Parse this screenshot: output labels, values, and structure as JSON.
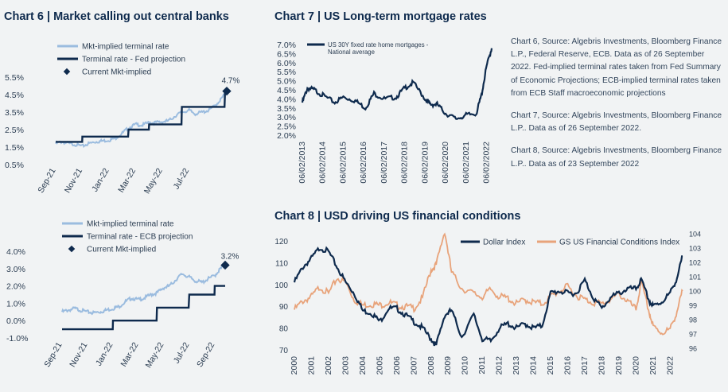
{
  "titles": {
    "chart6": "Chart 6 | Market calling out central banks",
    "chart7": "Chart 7 | US Long-term mortgage rates",
    "chart8": "Chart 8 | USD driving US financial conditions"
  },
  "sources": [
    "Chart 6, Source: Algebris Investments, Bloomberg Finance L.P., Federal Reserve, ECB. Data as of 26 September 2022. Fed-implied terminal rates taken from Fed Summary of Economic Projections; ECB-implied terminal rates taken from ECB Staff macroeconomic projections",
    "Chart 7, Source: Algebris Investments, Bloomberg Finance L.P.. Data as of 26 September 2022.",
    "Chart 8, Source: Algebris Investments, Bloomberg Finance L.P.. Data as of 23 September 2022"
  ],
  "colors": {
    "navy": "#0e2a4d",
    "light_blue": "#9bbcdf",
    "orange": "#e8a37a",
    "background": "#f1f3f4"
  },
  "chart_data": [
    {
      "id": "chart6",
      "type": "line",
      "x_ticks": [
        "Sep-21",
        "Nov-21",
        "Jan-22",
        "Mar-22",
        "May-22",
        "Jul-22"
      ],
      "y_ticks": [
        "5.5%",
        "4.5%",
        "3.5%",
        "2.5%",
        "1.5%",
        "0.5%"
      ],
      "ylim": [
        0.5,
        5.5
      ],
      "series": [
        {
          "name": "Mkt-implied terminal rate",
          "style": "line-light",
          "x": [
            "2021-09-01",
            "2021-09-15",
            "2021-10-01",
            "2021-10-15",
            "2021-11-01",
            "2021-11-15",
            "2021-12-01",
            "2021-12-15",
            "2022-01-01",
            "2022-01-15",
            "2022-02-01",
            "2022-02-15",
            "2022-03-01",
            "2022-03-15",
            "2022-04-01",
            "2022-04-15",
            "2022-05-01",
            "2022-05-15",
            "2022-06-01",
            "2022-06-15",
            "2022-07-01",
            "2022-07-15",
            "2022-08-01",
            "2022-08-15",
            "2022-09-01",
            "2022-09-15",
            "2022-09-26"
          ],
          "values": [
            1.7,
            1.8,
            1.7,
            1.65,
            1.55,
            1.7,
            1.8,
            1.85,
            1.9,
            2.0,
            2.3,
            2.6,
            2.8,
            2.75,
            2.9,
            2.9,
            2.95,
            3.0,
            3.3,
            3.5,
            3.6,
            3.4,
            3.5,
            3.6,
            3.9,
            4.3,
            4.7
          ]
        },
        {
          "name": "Terminal rate - Fed projection",
          "style": "step-navy",
          "x": [
            "2021-09-01",
            "2021-10-31",
            "2021-11-01",
            "2022-02-14",
            "2022-02-15",
            "2022-03-31",
            "2022-04-01",
            "2022-06-14",
            "2022-06-15",
            "2022-09-21",
            "2022-09-22",
            "2022-09-26"
          ],
          "values": [
            1.8,
            1.8,
            2.1,
            2.1,
            2.5,
            2.5,
            2.8,
            2.8,
            3.8,
            3.8,
            4.6,
            4.6
          ]
        }
      ],
      "current": {
        "name": "Current Mkt-implied",
        "value": 4.7,
        "label": "4.7%"
      }
    },
    {
      "id": "chart6b",
      "type": "line",
      "x_ticks": [
        "Sep-21",
        "Nov-21",
        "Jan-22",
        "Mar-22",
        "May-22",
        "Jul-22",
        "Sep-22"
      ],
      "y_ticks": [
        "4.0%",
        "3.0%",
        "2.0%",
        "1.0%",
        "0.0%",
        "-1.0%"
      ],
      "ylim": [
        -1.0,
        4.0
      ],
      "series": [
        {
          "name": "Mkt-implied terminal rate",
          "style": "line-light",
          "x": [
            "2021-09-01",
            "2021-09-15",
            "2021-10-01",
            "2021-10-15",
            "2021-11-01",
            "2021-11-15",
            "2021-12-01",
            "2021-12-15",
            "2022-01-01",
            "2022-01-15",
            "2022-02-01",
            "2022-02-15",
            "2022-03-01",
            "2022-03-15",
            "2022-04-01",
            "2022-04-15",
            "2022-05-01",
            "2022-05-15",
            "2022-06-01",
            "2022-06-15",
            "2022-07-01",
            "2022-07-15",
            "2022-08-01",
            "2022-08-15",
            "2022-09-01",
            "2022-09-15",
            "2022-09-26"
          ],
          "values": [
            0.5,
            0.6,
            0.7,
            0.6,
            0.5,
            0.45,
            0.5,
            0.6,
            0.7,
            0.8,
            1.1,
            1.3,
            1.2,
            1.3,
            1.5,
            1.6,
            1.9,
            2.0,
            2.4,
            2.7,
            2.5,
            2.3,
            2.2,
            2.4,
            2.6,
            3.0,
            3.2
          ]
        },
        {
          "name": "Terminal rate - ECB projection",
          "style": "step-navy",
          "x": [
            "2021-09-01",
            "2021-12-31",
            "2022-01-01",
            "2022-04-14",
            "2022-04-15",
            "2022-06-30",
            "2022-07-01",
            "2022-08-31",
            "2022-09-01",
            "2022-09-10",
            "2022-09-11",
            "2022-09-26"
          ],
          "values": [
            -0.5,
            -0.5,
            0.0,
            0.0,
            0.75,
            0.75,
            1.5,
            1.5,
            2.0,
            2.0,
            2.0,
            2.0
          ]
        }
      ],
      "current": {
        "name": "Current Mkt-implied",
        "value": 3.2,
        "label": "3.2%"
      }
    },
    {
      "id": "chart7",
      "type": "line",
      "x_ticks": [
        "06/02/2013",
        "06/02/2014",
        "06/02/2015",
        "06/02/2016",
        "06/02/2017",
        "06/02/2018",
        "06/02/2019",
        "06/02/2020",
        "06/02/2021",
        "06/02/2022"
      ],
      "y_ticks": [
        "7.0%",
        "6.5%",
        "6.0%",
        "5.5%",
        "5.0%",
        "4.5%",
        "4.0%",
        "3.5%",
        "3.0%",
        "2.5%",
        "2.0%"
      ],
      "ylim": [
        2.0,
        7.0
      ],
      "series": [
        {
          "name": "US 30Y fixed rate home mortgages - National average",
          "style": "line-navy",
          "x": [
            "2013-06",
            "2013-09",
            "2014-01",
            "2014-06",
            "2015-01",
            "2015-06",
            "2016-01",
            "2016-07",
            "2016-12",
            "2017-06",
            "2018-01",
            "2018-06",
            "2018-11",
            "2019-06",
            "2019-09",
            "2020-01",
            "2020-06",
            "2020-12",
            "2021-06",
            "2021-12",
            "2022-03",
            "2022-06",
            "2022-09"
          ],
          "values": [
            3.8,
            4.6,
            4.5,
            4.2,
            3.8,
            4.1,
            3.9,
            3.5,
            4.3,
            4.0,
            4.1,
            4.6,
            4.9,
            4.0,
            3.7,
            3.7,
            3.2,
            2.9,
            3.1,
            3.2,
            4.2,
            5.8,
            6.8
          ]
        }
      ]
    },
    {
      "id": "chart8",
      "type": "line",
      "x_ticks": [
        "2000",
        "2001",
        "2002",
        "2003",
        "2004",
        "2005",
        "2006",
        "2007",
        "2008",
        "2009",
        "2010",
        "2011",
        "2012",
        "2013",
        "2014",
        "2015",
        "2016",
        "2017",
        "2018",
        "2019",
        "2020",
        "2021",
        "2022"
      ],
      "y_ticks_left": [
        "120",
        "110",
        "100",
        "90",
        "80",
        "70"
      ],
      "y_ticks_right": [
        "104",
        "103",
        "102",
        "101",
        "100",
        "99",
        "98",
        "97",
        "96"
      ],
      "ylim_left": [
        70,
        120
      ],
      "ylim_right": [
        96,
        104
      ],
      "series": [
        {
          "name": "Dollar Index",
          "axis": "left",
          "style": "line-navy",
          "x": [
            2000,
            2000.5,
            2001,
            2001.5,
            2002,
            2002.5,
            2003,
            2003.5,
            2004,
            2004.5,
            2005,
            2005.5,
            2006,
            2006.5,
            2007,
            2007.5,
            2008,
            2008.3,
            2008.8,
            2009.2,
            2009.8,
            2010.5,
            2011,
            2011.5,
            2012,
            2012.5,
            2013,
            2013.5,
            2014,
            2014.5,
            2015,
            2015.5,
            2016,
            2016.5,
            2017,
            2017.5,
            2018,
            2018.5,
            2019,
            2019.5,
            2020,
            2020.3,
            2020.8,
            2021,
            2021.5,
            2022,
            2022.4,
            2022.73
          ],
          "values": [
            101,
            108,
            112,
            117,
            115,
            108,
            101,
            96,
            88,
            87,
            83,
            89,
            89,
            86,
            83,
            80,
            75,
            72,
            86,
            88,
            76,
            86,
            75,
            74,
            80,
            82,
            80,
            82,
            80,
            81,
            96,
            97,
            96,
            96,
            102,
            94,
            89,
            94,
            96,
            98,
            98,
            102,
            92,
            90,
            92,
            96,
            103,
            113
          ]
        },
        {
          "name": "GS US Financial Conditions Index",
          "axis": "right",
          "style": "line-orange",
          "x": [
            2000,
            2000.5,
            2001,
            2001.5,
            2002,
            2002.5,
            2003,
            2003.5,
            2004,
            2004.5,
            2005,
            2005.5,
            2006,
            2006.5,
            2007,
            2007.5,
            2008,
            2008.3,
            2008.8,
            2009.2,
            2009.8,
            2010.5,
            2011,
            2011.5,
            2012,
            2012.5,
            2013,
            2013.5,
            2014,
            2014.5,
            2015,
            2015.5,
            2016,
            2016.5,
            2017,
            2017.5,
            2018,
            2018.5,
            2019,
            2019.5,
            2020,
            2020.3,
            2020.8,
            2021,
            2021.5,
            2022,
            2022.4,
            2022.73
          ],
          "values": [
            98.7,
            99.3,
            99.6,
            100.3,
            99.8,
            100.9,
            100.6,
            99.4,
            99.0,
            99.1,
            99.0,
            99.2,
            99.0,
            98.9,
            98.8,
            99.5,
            101.5,
            101.8,
            104.2,
            101.3,
            100.2,
            99.8,
            99.6,
            100.1,
            99.6,
            99.5,
            99.1,
            99.4,
            99.2,
            99.1,
            99.6,
            100.0,
            100.3,
            99.7,
            99.4,
            99.2,
            99.1,
            99.4,
            99.8,
            99.3,
            98.7,
            100.6,
            98.4,
            97.5,
            97.1,
            97.3,
            98.6,
            100.0
          ]
        }
      ]
    }
  ]
}
